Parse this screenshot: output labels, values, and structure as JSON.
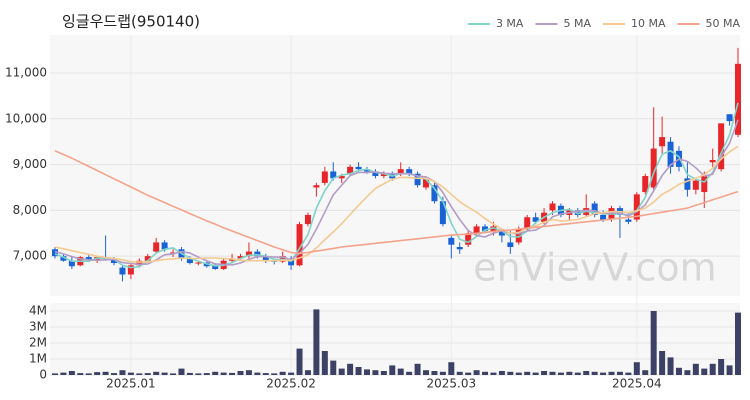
{
  "chart_data": {
    "type": "candlestick",
    "title": "잉글우드랩(950140)",
    "watermark": "enVievV.com",
    "categories": [
      null,
      null,
      null,
      null,
      null,
      null,
      null,
      null,
      null,
      "2025.01",
      null,
      null,
      null,
      null,
      null,
      null,
      null,
      null,
      null,
      null,
      null,
      null,
      null,
      null,
      null,
      null,
      null,
      null,
      "2025.02",
      null,
      null,
      null,
      null,
      null,
      null,
      null,
      null,
      null,
      null,
      null,
      null,
      null,
      null,
      null,
      null,
      null,
      null,
      "2025.03",
      null,
      null,
      null,
      null,
      null,
      null,
      null,
      null,
      null,
      null,
      null,
      null,
      null,
      null,
      null,
      null,
      null,
      null,
      null,
      null,
      null,
      "2025.04",
      null,
      null,
      null,
      null,
      null,
      null,
      null,
      null,
      null,
      null,
      null,
      null
    ],
    "open": [
      7150,
      7000,
      6900,
      6800,
      6980,
      6900,
      6980,
      6950,
      6750,
      6600,
      6800,
      6900,
      7100,
      7300,
      7050,
      7150,
      6950,
      6850,
      6860,
      6800,
      6720,
      6900,
      6950,
      7000,
      7100,
      7000,
      6900,
      6880,
      6950,
      6800,
      7700,
      8500,
      8600,
      8850,
      8700,
      8800,
      8950,
      8900,
      8850,
      8750,
      8800,
      8800,
      8900,
      8800,
      8500,
      8550,
      8200,
      7400,
      7200,
      7250,
      7500,
      7650,
      7550,
      7550,
      7300,
      7300,
      7600,
      7850,
      7750,
      8000,
      8100,
      7900,
      8000,
      7900,
      8150,
      7900,
      7800,
      8050,
      7800,
      7800,
      8400,
      8500,
      9400,
      9500,
      9300,
      8700,
      8450,
      8400,
      9050,
      8900,
      10100,
      9650
    ],
    "high": [
      7200,
      7050,
      6980,
      7000,
      7020,
      7000,
      7450,
      6980,
      6800,
      6850,
      6950,
      7050,
      7400,
      7350,
      7150,
      7200,
      7000,
      6900,
      6880,
      6850,
      6950,
      7050,
      7050,
      7300,
      7150,
      7050,
      6950,
      7100,
      7000,
      7750,
      7950,
      8600,
      8950,
      9050,
      8800,
      9000,
      9050,
      8950,
      8900,
      8850,
      8850,
      9050,
      8950,
      8850,
      8750,
      8600,
      8300,
      7450,
      7300,
      7550,
      7700,
      7700,
      7750,
      7600,
      7550,
      7650,
      7900,
      7950,
      8050,
      8200,
      8150,
      8050,
      8050,
      8350,
      8200,
      8000,
      8100,
      8100,
      7950,
      8400,
      8800,
      10250,
      10050,
      9600,
      9400,
      9050,
      8700,
      8850,
      9350,
      9900,
      10100,
      11550
    ],
    "low": [
      6950,
      6880,
      6720,
      6780,
      6880,
      6850,
      6900,
      6800,
      6450,
      6500,
      6750,
      6850,
      7050,
      7100,
      6980,
      6900,
      6820,
      6800,
      6750,
      6700,
      6700,
      6850,
      6900,
      6950,
      6950,
      6850,
      6820,
      6850,
      6700,
      6780,
      7650,
      8300,
      8550,
      8650,
      8600,
      8750,
      8850,
      8800,
      8700,
      8700,
      8650,
      8750,
      8750,
      8500,
      8450,
      8150,
      7650,
      6950,
      7050,
      7200,
      7450,
      7500,
      7450,
      7300,
      7050,
      7250,
      7550,
      7700,
      7700,
      7900,
      7850,
      7800,
      7850,
      7850,
      7850,
      7750,
      7750,
      7400,
      7700,
      7750,
      8350,
      8450,
      9200,
      8800,
      8850,
      8300,
      8350,
      8050,
      8950,
      8850,
      9850,
      9600
    ],
    "close": [
      7000,
      6900,
      6780,
      6980,
      6920,
      6980,
      6950,
      6850,
      6600,
      6800,
      6900,
      7000,
      7300,
      7150,
      7080,
      6950,
      6850,
      6860,
      6780,
      6720,
      6900,
      6950,
      7000,
      7100,
      7000,
      6900,
      6880,
      7000,
      6800,
      7700,
      7900,
      8550,
      8850,
      8700,
      8750,
      8950,
      8900,
      8850,
      8750,
      8800,
      8700,
      8900,
      8800,
      8550,
      8700,
      8200,
      7700,
      7250,
      7150,
      7500,
      7650,
      7550,
      7650,
      7450,
      7200,
      7600,
      7850,
      7750,
      7950,
      8150,
      7900,
      8000,
      7900,
      8050,
      7900,
      7800,
      8050,
      7900,
      7750,
      8350,
      8750,
      9350,
      9600,
      8950,
      8950,
      8450,
      8650,
      8750,
      9100,
      9900,
      9950,
      11200
    ],
    "up_color": "#e8262a",
    "down_color": "#1a63d6",
    "ylim": [
      6130,
      11830
    ],
    "yticks": [
      {
        "value": 7000,
        "label": "7,000"
      },
      {
        "value": 8000,
        "label": "8,000"
      },
      {
        "value": 9000,
        "label": "9,000"
      },
      {
        "value": 10000,
        "label": "10,000"
      },
      {
        "value": 11000,
        "label": "11,000"
      }
    ],
    "grid": true,
    "legend": "top-right",
    "series": [
      {
        "name": "3 MA",
        "color": "#7fd4c9",
        "values": [
          7050,
          6980,
          6890,
          6890,
          6890,
          6960,
          6950,
          6930,
          6800,
          6750,
          6770,
          6900,
          7070,
          7150,
          7180,
          7060,
          6960,
          6890,
          6830,
          6790,
          6800,
          6860,
          6950,
          7020,
          7030,
          7000,
          6930,
          6930,
          6890,
          7170,
          7470,
          8050,
          8430,
          8700,
          8770,
          8800,
          8870,
          8900,
          8830,
          8800,
          8750,
          8800,
          8800,
          8750,
          8680,
          8480,
          8200,
          7720,
          7370,
          7300,
          7430,
          7570,
          7620,
          7550,
          7430,
          7420,
          7550,
          7730,
          7850,
          7950,
          8000,
          8020,
          7930,
          7980,
          7950,
          7920,
          7920,
          7920,
          7900,
          8000,
          8280,
          8820,
          9230,
          9300,
          9170,
          8780,
          8680,
          8620,
          8830,
          9250,
          9650,
          10350
        ]
      },
      {
        "name": "5 MA",
        "color": "#b39cc7",
        "values": [
          7100,
          7050,
          6990,
          6940,
          6920,
          6910,
          6920,
          6930,
          6860,
          6840,
          6820,
          6830,
          6920,
          7030,
          7050,
          7100,
          7070,
          6980,
          6900,
          6830,
          6820,
          6810,
          6850,
          6930,
          6990,
          6990,
          6980,
          6980,
          6920,
          7060,
          7260,
          7590,
          7960,
          8340,
          8550,
          8760,
          8830,
          8830,
          8840,
          8810,
          8800,
          8800,
          8800,
          8750,
          8730,
          8630,
          8390,
          8080,
          7800,
          7560,
          7450,
          7420,
          7500,
          7560,
          7500,
          7490,
          7550,
          7570,
          7670,
          7860,
          7920,
          7950,
          7980,
          8000,
          7990,
          7930,
          7940,
          7940,
          7880,
          7970,
          8120,
          8430,
          8760,
          8990,
          9120,
          9070,
          8930,
          8750,
          8790,
          9170,
          9470,
          9980
        ]
      },
      {
        "name": "10 MA",
        "color": "#f5c98f",
        "values": [
          7200,
          7160,
          7120,
          7080,
          7040,
          7000,
          6970,
          6950,
          6920,
          6880,
          6870,
          6870,
          6900,
          6930,
          6940,
          6960,
          6950,
          6950,
          6960,
          6960,
          6950,
          6940,
          6910,
          6900,
          6900,
          6900,
          6900,
          6910,
          6910,
          6960,
          7030,
          7180,
          7360,
          7530,
          7710,
          7910,
          8110,
          8300,
          8480,
          8580,
          8680,
          8720,
          8720,
          8700,
          8700,
          8630,
          8510,
          8350,
          8190,
          8070,
          7960,
          7820,
          7700,
          7590,
          7500,
          7520,
          7610,
          7660,
          7740,
          7800,
          7770,
          7780,
          7800,
          7860,
          7930,
          7950,
          7970,
          7970,
          7950,
          7990,
          8050,
          8180,
          8350,
          8450,
          8570,
          8640,
          8700,
          8780,
          8920,
          9120,
          9280,
          9400
        ]
      },
      {
        "name": "50 MA",
        "color": "#f4a38a",
        "values": [
          9300,
          9220,
          9140,
          9050,
          8960,
          8870,
          8780,
          8690,
          8600,
          8510,
          8420,
          8330,
          8250,
          8170,
          8090,
          8010,
          7930,
          7850,
          7770,
          7700,
          7620,
          7550,
          7480,
          7410,
          7340,
          7270,
          7200,
          7140,
          7080,
          7060,
          7080,
          7110,
          7140,
          7170,
          7200,
          7220,
          7240,
          7260,
          7280,
          7300,
          7320,
          7340,
          7360,
          7380,
          7400,
          7420,
          7440,
          7460,
          7470,
          7480,
          7500,
          7520,
          7540,
          7560,
          7570,
          7590,
          7610,
          7630,
          7650,
          7670,
          7690,
          7710,
          7730,
          7750,
          7770,
          7790,
          7810,
          7830,
          7850,
          7870,
          7900,
          7930,
          7960,
          7990,
          8020,
          8050,
          8110,
          8170,
          8230,
          8290,
          8350,
          8410
        ]
      }
    ],
    "volume": {
      "color": "#3d4166",
      "ylim": [
        0,
        4500000
      ],
      "yticks": [
        0,
        {
          "value": 1000000,
          "label": "1M"
        },
        {
          "value": 2000000,
          "label": "2M"
        },
        {
          "value": 3000000,
          "label": "3M"
        },
        {
          "value": 4000000,
          "label": "4M"
        }
      ],
      "values": [
        100000,
        150000,
        250000,
        120000,
        100000,
        180000,
        200000,
        120000,
        300000,
        150000,
        100000,
        120000,
        200000,
        150000,
        100000,
        400000,
        130000,
        100000,
        120000,
        200000,
        150000,
        130000,
        250000,
        300000,
        150000,
        120000,
        100000,
        200000,
        150000,
        1650000,
        300000,
        4100000,
        1500000,
        900000,
        400000,
        700000,
        500000,
        350000,
        300000,
        250000,
        600000,
        400000,
        200000,
        700000,
        300000,
        250000,
        200000,
        800000,
        200000,
        150000,
        300000,
        200000,
        150000,
        250000,
        200000,
        150000,
        200000,
        150000,
        250000,
        200000,
        150000,
        200000,
        150000,
        250000,
        200000,
        150000,
        200000,
        200000,
        150000,
        800000,
        300000,
        4000000,
        1500000,
        1100000,
        450000,
        300000,
        700000,
        400000,
        700000,
        1000000,
        600000,
        3900000
      ]
    }
  }
}
